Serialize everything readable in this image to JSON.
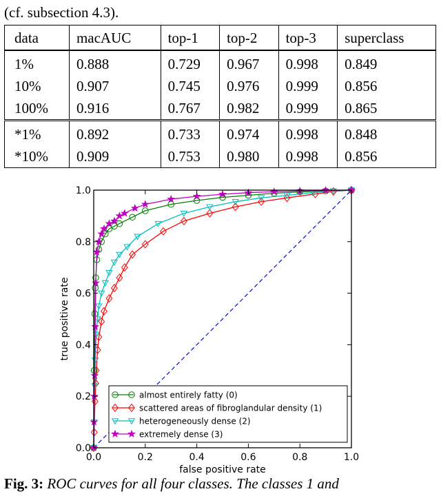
{
  "top_text": "(cf. subsection 4.3).",
  "table": {
    "headers": [
      "data",
      "macAUC",
      "top-1",
      "top-2",
      "top-3",
      "superclass"
    ],
    "group_a": [
      [
        "1%",
        "0.888",
        "0.729",
        "0.967",
        "0.998",
        "0.849"
      ],
      [
        "10%",
        "0.907",
        "0.745",
        "0.976",
        "0.999",
        "0.856"
      ],
      [
        "100%",
        "0.916",
        "0.767",
        "0.982",
        "0.999",
        "0.865"
      ]
    ],
    "group_b": [
      [
        "*1%",
        "0.892",
        "0.733",
        "0.974",
        "0.998",
        "0.848"
      ],
      [
        "*10%",
        "0.909",
        "0.753",
        "0.980",
        "0.998",
        "0.856"
      ]
    ]
  },
  "chart_data": {
    "type": "line",
    "xlabel": "false positive rate",
    "ylabel": "true positive rate",
    "xlim": [
      0.0,
      1.0
    ],
    "ylim": [
      0.0,
      1.0
    ],
    "xticks": [
      "0.0",
      "0.2",
      "0.4",
      "0.6",
      "0.8",
      "1.0"
    ],
    "yticks": [
      "0.0",
      "0.2",
      "0.4",
      "0.6",
      "0.8",
      "1.0"
    ],
    "grid": false,
    "legend_position": "lower-right",
    "chance_line": {
      "x": [
        0,
        1
      ],
      "y": [
        0,
        1
      ],
      "color": "#0000ff",
      "style": "dashed"
    },
    "series": [
      {
        "name": "almost entirely fatty (0)",
        "color": "#008000",
        "marker": "circle",
        "x": [
          0,
          0.002,
          0.004,
          0.006,
          0.008,
          0.012,
          0.02,
          0.03,
          0.045,
          0.06,
          0.08,
          0.1,
          0.15,
          0.2,
          0.3,
          0.4,
          0.5,
          0.6,
          0.7,
          0.8,
          0.9,
          1.0
        ],
        "y": [
          0,
          0.3,
          0.52,
          0.62,
          0.66,
          0.73,
          0.77,
          0.8,
          0.83,
          0.85,
          0.86,
          0.87,
          0.895,
          0.92,
          0.945,
          0.96,
          0.972,
          0.98,
          0.988,
          0.993,
          0.997,
          1.0
        ]
      },
      {
        "name": "scattered areas of fibroglandular density (1)",
        "color": "#ff0000",
        "marker": "diamond",
        "x": [
          0,
          0.002,
          0.005,
          0.008,
          0.01,
          0.015,
          0.02,
          0.03,
          0.04,
          0.06,
          0.08,
          0.1,
          0.12,
          0.15,
          0.2,
          0.27,
          0.35,
          0.45,
          0.55,
          0.65,
          0.75,
          0.86,
          0.93,
          1.0
        ],
        "y": [
          0,
          0.06,
          0.18,
          0.25,
          0.3,
          0.38,
          0.43,
          0.49,
          0.53,
          0.58,
          0.62,
          0.66,
          0.7,
          0.75,
          0.79,
          0.84,
          0.88,
          0.91,
          0.935,
          0.955,
          0.97,
          0.985,
          0.995,
          1.0
        ]
      },
      {
        "name": "heterogeneously dense (2)",
        "color": "#00bfbf",
        "marker": "triangle-down",
        "x": [
          0,
          0.002,
          0.004,
          0.006,
          0.01,
          0.015,
          0.02,
          0.03,
          0.045,
          0.06,
          0.08,
          0.1,
          0.13,
          0.17,
          0.25,
          0.35,
          0.45,
          0.55,
          0.65,
          0.75,
          0.85,
          0.93,
          1.0
        ],
        "y": [
          0,
          0.1,
          0.24,
          0.34,
          0.44,
          0.5,
          0.55,
          0.6,
          0.64,
          0.68,
          0.72,
          0.75,
          0.78,
          0.82,
          0.87,
          0.91,
          0.935,
          0.955,
          0.97,
          0.98,
          0.99,
          0.997,
          1.0
        ]
      },
      {
        "name": "extremely dense (3)",
        "color": "#bf00bf",
        "marker": "star",
        "x": [
          0,
          0.001,
          0.002,
          0.004,
          0.006,
          0.008,
          0.012,
          0.02,
          0.03,
          0.04,
          0.06,
          0.08,
          0.1,
          0.12,
          0.16,
          0.2,
          0.3,
          0.4,
          0.5,
          0.6,
          0.7,
          0.8,
          0.9,
          1.0
        ],
        "y": [
          0,
          0.1,
          0.2,
          0.28,
          0.47,
          0.64,
          0.76,
          0.8,
          0.83,
          0.85,
          0.87,
          0.88,
          0.9,
          0.91,
          0.93,
          0.945,
          0.965,
          0.976,
          0.984,
          0.99,
          0.994,
          0.997,
          0.999,
          1.0
        ]
      }
    ]
  },
  "caption": {
    "fig_label": "Fig. 3:",
    "text": "ROC curves for all four classes. The classes 1 and"
  }
}
